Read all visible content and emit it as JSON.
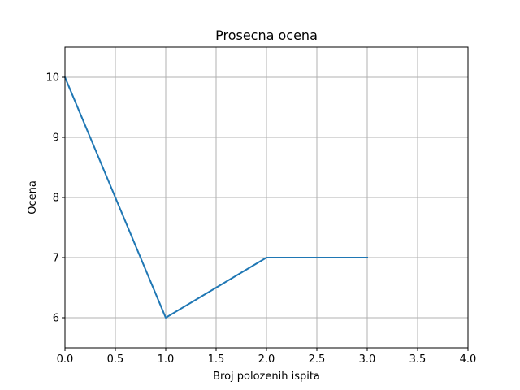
{
  "chart_data": {
    "type": "line",
    "title": "Prosecna ocena",
    "xlabel": "Broj polozenih ispita",
    "ylabel": "Ocena",
    "xlim": [
      0.0,
      4.0
    ],
    "ylim": [
      5.5,
      10.5
    ],
    "x_ticks": [
      0.0,
      0.5,
      1.0,
      1.5,
      2.0,
      2.5,
      3.0,
      3.5,
      4.0
    ],
    "x_tick_labels": [
      "0.0",
      "0.5",
      "1.0",
      "1.5",
      "2.0",
      "2.5",
      "3.0",
      "3.5",
      "4.0"
    ],
    "y_ticks": [
      6,
      7,
      8,
      9,
      10
    ],
    "y_tick_labels": [
      "6",
      "7",
      "8",
      "9",
      "10"
    ],
    "grid": true,
    "legend": "none",
    "series": [
      {
        "color": "#1f77b4",
        "x": [
          0,
          1,
          2,
          3
        ],
        "y": [
          10,
          6,
          7,
          7
        ]
      }
    ]
  }
}
